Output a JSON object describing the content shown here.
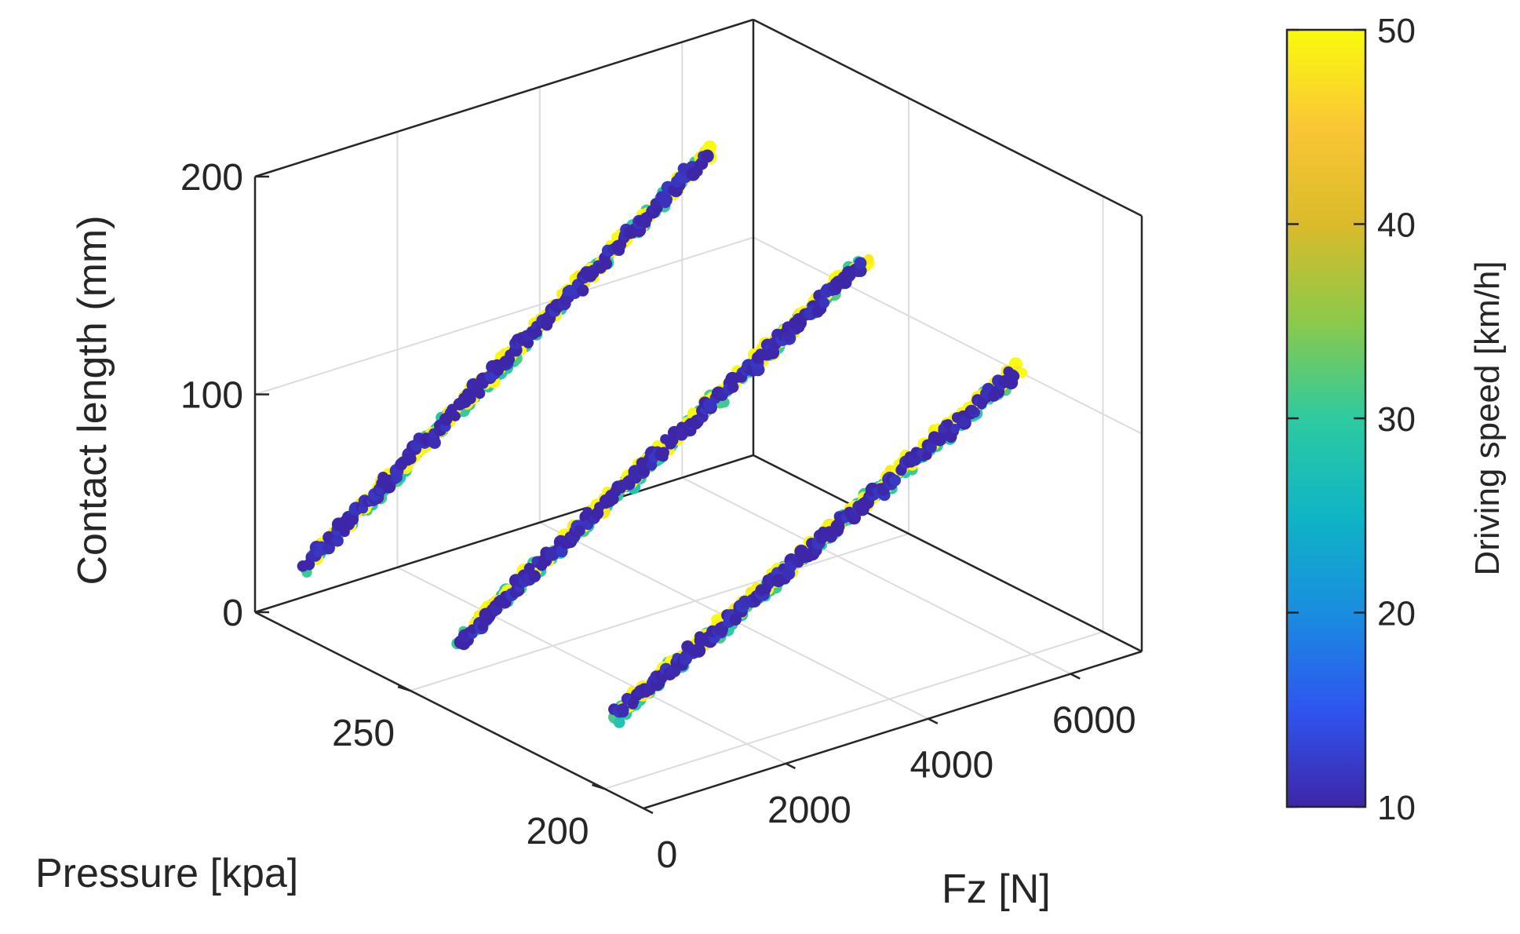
{
  "chart_data": {
    "type": "scatter",
    "dimensions": "3d",
    "title": "",
    "xlabel": "Fz [N]",
    "ylabel": "Pressure [kpa]",
    "zlabel": "Contact length (mm)",
    "xlim": [
      0,
      7000
    ],
    "ylim": [
      190,
      290
    ],
    "zlim": [
      0,
      200
    ],
    "x_ticks": [
      "0",
      "2000",
      "4000",
      "6000"
    ],
    "y_ticks": [
      "200",
      "250"
    ],
    "z_ticks": [
      "0",
      "100",
      "200"
    ],
    "grid": true,
    "colorbar": {
      "label": "Driving speed [km/h]",
      "range": [
        10,
        50
      ],
      "ticks": [
        "10",
        "20",
        "30",
        "40",
        "50"
      ],
      "colormap": [
        "#3e26a8",
        "#2f55f0",
        "#1a8de0",
        "#0fb5c5",
        "#2ecaa0",
        "#8cc94a",
        "#dabb2b",
        "#fac635",
        "#f9fb0e"
      ]
    },
    "series": [
      {
        "pressure": 200,
        "fz_range": [
          200,
          5800
        ],
        "contact_length_range": [
          33,
          133
        ],
        "speeds": [
          10,
          30,
          50
        ]
      },
      {
        "pressure": 240,
        "fz_range": [
          200,
          5800
        ],
        "contact_length_range": [
          32,
          147
        ],
        "speeds": [
          10,
          30,
          50
        ]
      },
      {
        "pressure": 280,
        "fz_range": [
          200,
          5800
        ],
        "contact_length_range": [
          30,
          160
        ],
        "speeds": [
          10,
          30,
          50
        ]
      }
    ]
  }
}
